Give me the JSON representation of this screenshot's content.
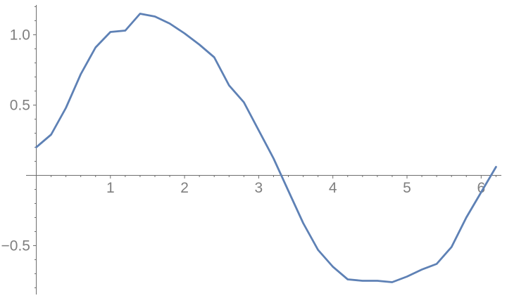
{
  "app": {
    "background_color": "#ffffff"
  },
  "chart_data": {
    "type": "line",
    "title": "",
    "xlabel": "",
    "ylabel": "",
    "grid": false,
    "legend": false,
    "line_color": "#5E81B5",
    "axis_color": "#6e6e6e",
    "tick_label_color": "#7f7f7f",
    "xlim": [
      -0.14,
      6.28
    ],
    "ylim": [
      -0.85,
      1.21
    ],
    "x": [
      0.0,
      0.2,
      0.4,
      0.6,
      0.8,
      1.0,
      1.2,
      1.4,
      1.6,
      1.8,
      2.0,
      2.2,
      2.4,
      2.6,
      2.8,
      3.0,
      3.2,
      3.4,
      3.6,
      3.8,
      4.0,
      4.2,
      4.4,
      4.6,
      4.8,
      5.0,
      5.2,
      5.4,
      5.6,
      5.8,
      6.0,
      6.2
    ],
    "y": [
      0.2,
      0.29,
      0.48,
      0.72,
      0.91,
      1.02,
      1.03,
      1.15,
      1.13,
      1.08,
      1.01,
      0.93,
      0.84,
      0.64,
      0.52,
      0.32,
      0.12,
      -0.11,
      -0.34,
      -0.53,
      -0.65,
      -0.74,
      -0.75,
      -0.75,
      -0.76,
      -0.72,
      -0.67,
      -0.63,
      -0.51,
      -0.3,
      -0.12,
      0.06
    ],
    "x_ticks": {
      "values": [
        1,
        2,
        3,
        4,
        5,
        6
      ],
      "labels": [
        "1",
        "2",
        "3",
        "4",
        "5",
        "6"
      ]
    },
    "y_ticks": {
      "values": [
        1.0,
        0.5,
        -0.5
      ],
      "labels": [
        "1.0",
        "0.5",
        "−0.5"
      ]
    },
    "x_minor_step": 0.2,
    "x_minor_range": [
      0.2,
      6.2
    ],
    "y_minor_step": 0.1,
    "y_minor_range": [
      -0.8,
      1.2
    ]
  }
}
